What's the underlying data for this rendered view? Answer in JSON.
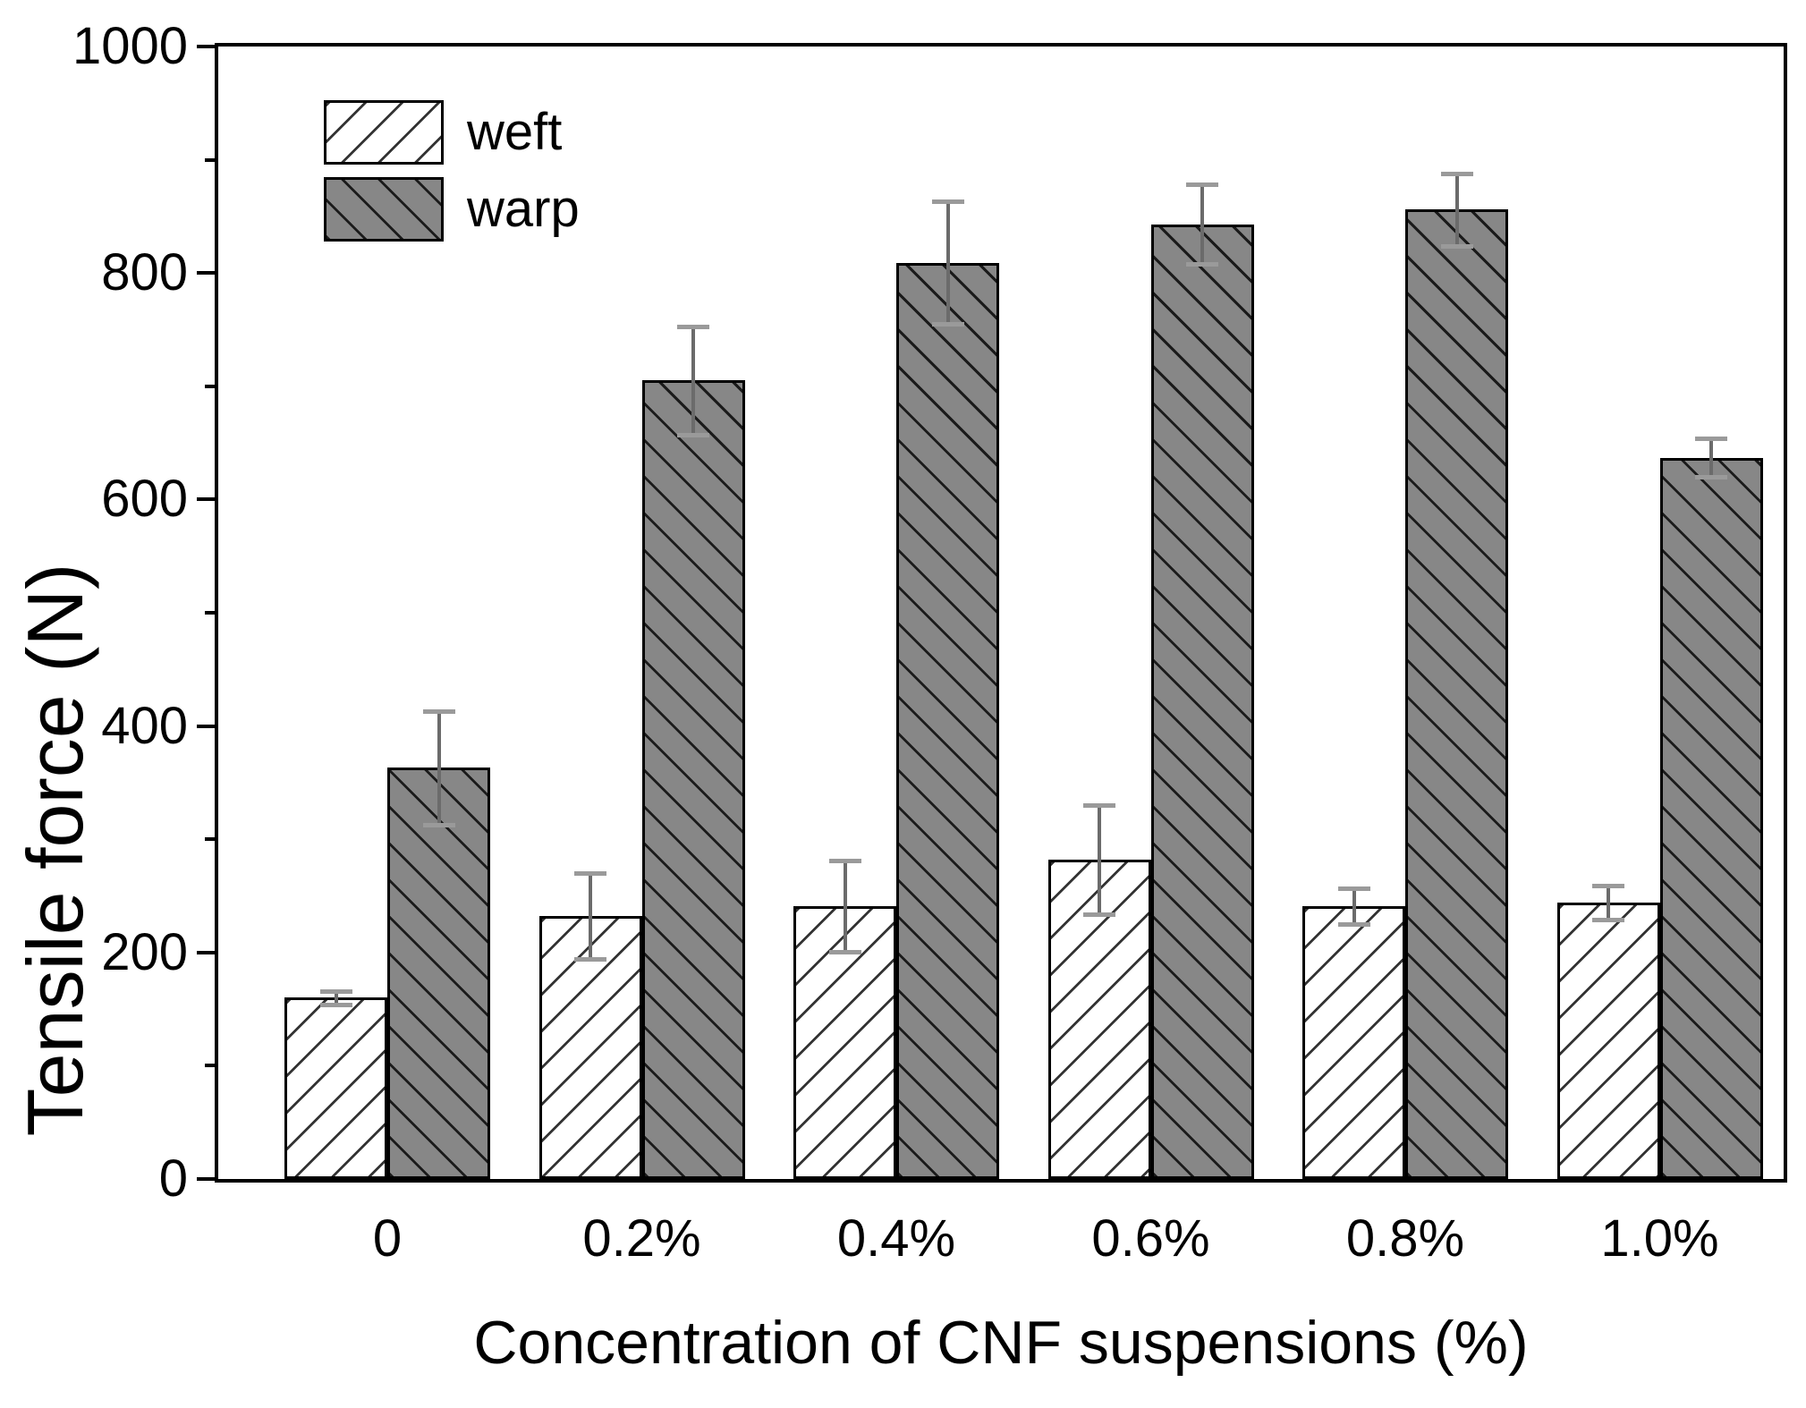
{
  "chart_data": {
    "type": "bar",
    "title": "",
    "xlabel": "Concentration of CNF suspensions (%)",
    "ylabel": "Tensile force (N)",
    "categories": [
      "0",
      "0.2%",
      "0.4%",
      "0.6%",
      "0.8%",
      "1.0%"
    ],
    "series": [
      {
        "name": "weft",
        "values": [
          160,
          232,
          241,
          282,
          241,
          244
        ],
        "errors": [
          6,
          38,
          40,
          48,
          16,
          15
        ],
        "fill": "#ffffff",
        "hatch_color": "#333333",
        "hatch_direction": "forward-diagonal"
      },
      {
        "name": "warp",
        "values": [
          363,
          705,
          809,
          843,
          856,
          637
        ],
        "errors": [
          50,
          48,
          54,
          35,
          32,
          17
        ],
        "fill": "#878787",
        "hatch_color": "#1b1b1b",
        "hatch_direction": "back-diagonal"
      }
    ],
    "ylim": [
      0,
      1000
    ],
    "y_major_ticks": [
      0,
      200,
      400,
      600,
      800,
      1000
    ],
    "y_minor_ticks": [
      100,
      300,
      500,
      700,
      900
    ],
    "legend_position": "top-left",
    "grid": false,
    "axis_color": "#000000",
    "error_bar_color": "#6b6b6b",
    "error_cap_color": "#9a9a9a"
  }
}
